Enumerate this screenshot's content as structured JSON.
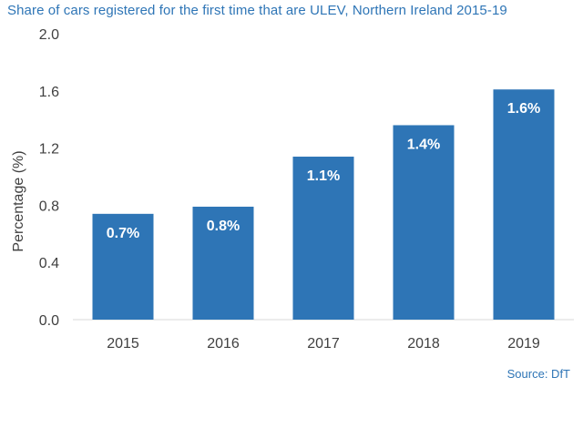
{
  "chart_data": {
    "type": "bar",
    "title": "Share of cars registered for the first time that are ULEV, Northern Ireland 2015-19",
    "categories": [
      "2015",
      "2016",
      "2017",
      "2018",
      "2019"
    ],
    "values": [
      0.74,
      0.79,
      1.14,
      1.36,
      1.61
    ],
    "data_labels": [
      "0.7%",
      "0.8%",
      "1.1%",
      "1.4%",
      "1.6%"
    ],
    "xlabel": "",
    "ylabel": "Percentage (%)",
    "ylim": [
      0,
      2.0
    ],
    "yticks": [
      "0.0",
      "0.4",
      "0.8",
      "1.2",
      "1.6",
      "2.0"
    ],
    "grid": false,
    "legend": "none",
    "source": "Source: DfT"
  },
  "colors": {
    "bar": "#2e75b6",
    "title": "#2e75b6",
    "axis": "#d9d9d9",
    "text": "#404040"
  }
}
